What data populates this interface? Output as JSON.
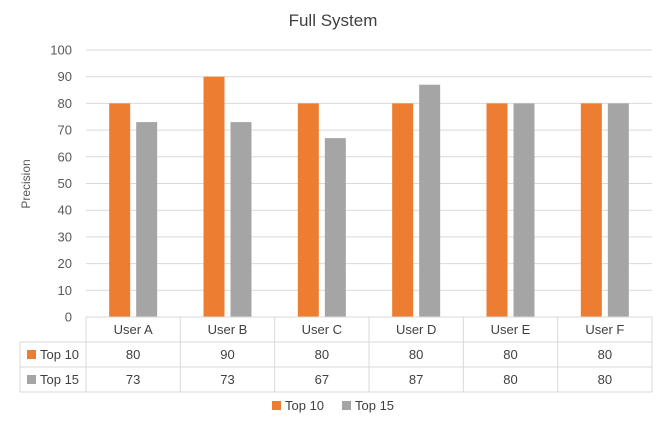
{
  "chart_data": {
    "type": "bar",
    "title": "Full System",
    "ylabel": "Precision",
    "xlabel": "",
    "ylim": [
      0,
      100
    ],
    "yticks": [
      0,
      10,
      20,
      30,
      40,
      50,
      60,
      70,
      80,
      90,
      100
    ],
    "grid": true,
    "legend": "bottom",
    "data_table": true,
    "categories": [
      "User A",
      "User B",
      "User C",
      "User D",
      "User E",
      "User F"
    ],
    "series": [
      {
        "name": "Top 10",
        "color": "#ED7D31",
        "values": [
          80,
          90,
          80,
          80,
          80,
          80
        ]
      },
      {
        "name": "Top 15",
        "color": "#A5A5A5",
        "values": [
          73,
          73,
          67,
          87,
          80,
          80
        ]
      }
    ]
  }
}
